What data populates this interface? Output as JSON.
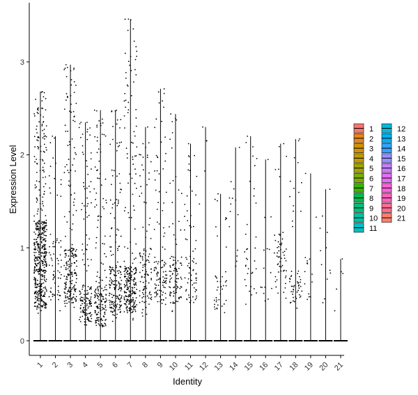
{
  "chart_data": {
    "type": "scatter",
    "subtype": "violin-jitter",
    "title": "",
    "xlabel": "Identity",
    "ylabel": "Expression Level",
    "categories": [
      "1",
      "2",
      "3",
      "4",
      "5",
      "6",
      "7",
      "8",
      "9",
      "10",
      "11",
      "12",
      "13",
      "14",
      "15",
      "16",
      "17",
      "18",
      "19",
      "20",
      "21"
    ],
    "ylim": [
      -0.15,
      3.6
    ],
    "yticks": [
      0,
      1,
      2,
      3
    ],
    "grid": false,
    "legend": "right",
    "group_colors": [
      "#F8766D",
      "#E7861B",
      "#D39200",
      "#BE9C00",
      "#A3A500",
      "#7CAE00",
      "#39B600",
      "#00BB4E",
      "#00BF7D",
      "#00C1A3",
      "#00BFC4",
      "#00BAE0",
      "#00B0F6",
      "#35A2FF",
      "#9590FF",
      "#C77CFF",
      "#E76BF3",
      "#FA62DB",
      "#FF62BC",
      "#FF6C91",
      "#FF7F6A"
    ],
    "max_values": [
      2.68,
      2.2,
      2.97,
      2.35,
      2.48,
      2.48,
      3.46,
      2.3,
      2.71,
      2.44,
      2.12,
      2.3,
      1.58,
      2.08,
      2.2,
      1.95,
      2.12,
      2.17,
      1.8,
      1.63,
      0.88
    ],
    "expressed_ranges": [
      [
        0.25,
        2.68
      ],
      [
        0.2,
        2.2
      ],
      [
        0.3,
        2.97
      ],
      [
        0.15,
        2.35
      ],
      [
        0.15,
        2.48
      ],
      [
        0.2,
        2.48
      ],
      [
        0.2,
        3.46
      ],
      [
        0.25,
        2.3
      ],
      [
        0.3,
        2.71
      ],
      [
        0.3,
        2.44
      ],
      [
        0.3,
        2.12
      ],
      [
        1.2,
        2.3
      ],
      [
        0.3,
        1.58
      ],
      [
        0.5,
        2.08
      ],
      [
        0.35,
        2.2
      ],
      [
        0.3,
        1.95
      ],
      [
        0.35,
        2.12
      ],
      [
        0.35,
        2.17
      ],
      [
        0.3,
        1.8
      ],
      [
        0.3,
        1.63
      ],
      [
        0.2,
        0.88
      ]
    ],
    "expressed_point_counts": [
      500,
      70,
      230,
      160,
      180,
      190,
      260,
      110,
      110,
      100,
      70,
      5,
      40,
      15,
      35,
      15,
      55,
      55,
      15,
      12,
      5
    ],
    "dense_bands": [
      [
        0.35,
        1.3
      ],
      [
        0.4,
        1.1
      ],
      [
        0.4,
        1.0
      ],
      [
        0.2,
        0.6
      ],
      [
        0.15,
        0.6
      ],
      [
        0.3,
        0.8
      ],
      [
        0.3,
        0.8
      ],
      [
        0.4,
        1.0
      ],
      [
        0.4,
        0.9
      ],
      [
        0.4,
        0.9
      ],
      [
        0.4,
        0.9
      ],
      [
        1.2,
        2.3
      ],
      [
        0.3,
        0.7
      ],
      [
        0.6,
        1.6
      ],
      [
        0.5,
        1.0
      ],
      [
        0.4,
        1.0
      ],
      [
        0.6,
        1.2
      ],
      [
        0.4,
        0.8
      ],
      [
        0.4,
        0.9
      ],
      [
        0.4,
        1.3
      ],
      [
        0.2,
        0.8
      ]
    ],
    "zero_level": 0
  }
}
